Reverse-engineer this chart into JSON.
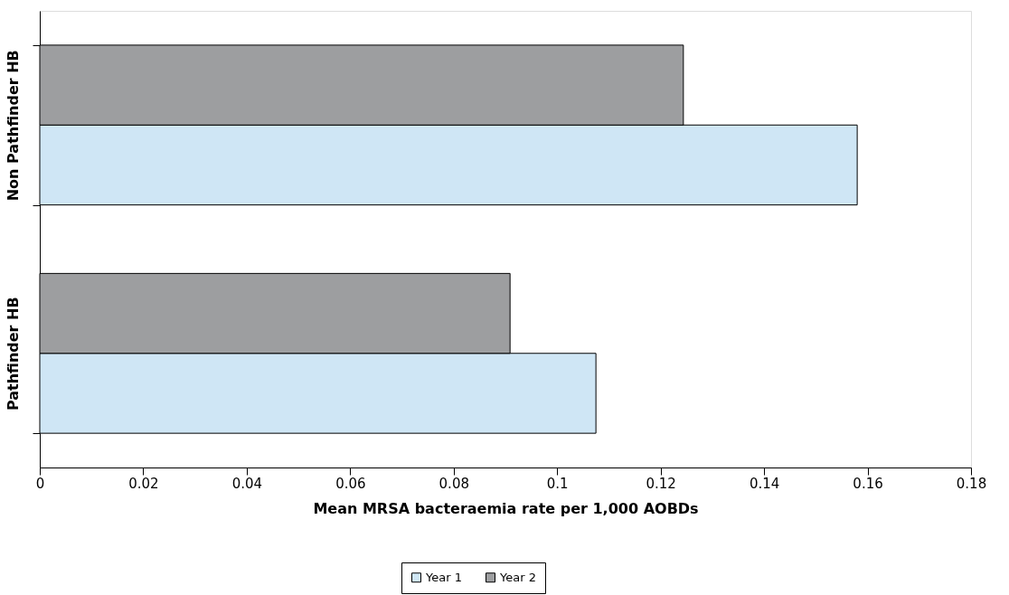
{
  "chart_data": {
    "type": "bar",
    "orientation": "horizontal",
    "xlabel": "Mean MRSA bacteraemia rate per 1,000 AOBDs",
    "categories": [
      "Non Pathfinder HB",
      "Pathfinder HB"
    ],
    "series": [
      {
        "name": "Year 1",
        "color": "#cfe6f5",
        "values": [
          0.158,
          0.1075
        ]
      },
      {
        "name": "Year 2",
        "color": "#9d9ea0",
        "values": [
          0.1244,
          0.0909
        ]
      }
    ],
    "xlim": [
      0,
      0.18
    ],
    "xticks": [
      0,
      0.02,
      0.04,
      0.06,
      0.08,
      0.1,
      0.12,
      0.14,
      0.16,
      0.18
    ],
    "grid": false,
    "legend": "bottom"
  }
}
